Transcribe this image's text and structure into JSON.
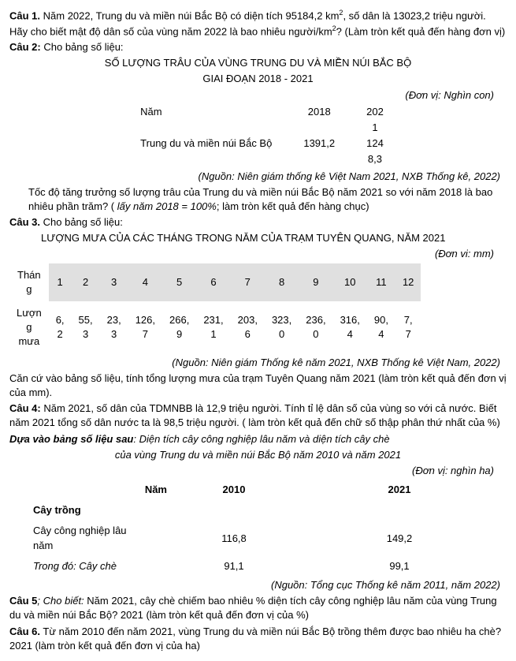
{
  "q1": {
    "label": "Câu 1.",
    "text_a": "Năm 2022, Trung du và miền núi Bắc Bộ có diện tích 95184,2 km",
    "sup": "2",
    "text_b": ", số dân là 13023,2 triệu người. Hãy cho biết mật độ dân số của vùng năm 2022 là bao nhiêu người/km",
    "sup2": "2",
    "text_c": "? (Làm tròn kết quả đến hàng đơn vị)"
  },
  "q2": {
    "label": "Câu 2:",
    "lead": "Cho bảng số liệu:",
    "title1": "SỐ LƯỢNG TRÂU CỦA VÙNG TRUNG DU VÀ MIỀN NÚI BẮC BỘ",
    "title2": "GIAI ĐOẠN 2018 - 2021",
    "unit": "(Đơn vị: Nghìn con)",
    "colYear": "Năm",
    "col2018": "2018",
    "col2021_a": "202",
    "col2021_b": "1",
    "rowLabel": "Trung du và miền núi Bắc Bộ",
    "v2018": "1391,2",
    "v2021_a": "124",
    "v2021_b": "8,3",
    "source": "(Nguồn: Niên giám thống kê Việt Nam 2021, NXB Thống kê, 2022)",
    "ask_a": "Tốc độ tăng trưởng số lượng trâu của Trung du và miền núi Bắc Bộ năm 2021 so với năm 2018 là bao nhiêu phần trăm? ( ",
    "ask_i": "lấy năm 2018 = 100%",
    "ask_b": "; làm tròn kết quả đến hàng chục)"
  },
  "q3": {
    "label": "Câu 3.",
    "lead": "Cho bảng số liệu:",
    "title": "LƯỢNG MƯA CỦA CÁC THÁNG TRONG NĂM CỦA TRẠM TUYÊN QUANG, NĂM 2021",
    "unit": "(Đơn vi: mm)",
    "headLabel": "Thán\ng",
    "rowLabel": "Lượn\ng\nmưa",
    "months": [
      "1",
      "2",
      "3",
      "4",
      "5",
      "6",
      "7",
      "8",
      "9",
      "10",
      "11",
      "12"
    ],
    "vals": [
      "6,\n2",
      "55,\n3",
      "23,\n3",
      "126,\n7",
      "266,\n9",
      "231,\n1",
      "203,\n6",
      "323,\n0",
      "236,\n0",
      "316,\n4",
      "90,\n4",
      "7,\n7"
    ],
    "source": "(Nguồn: Niên giám Thống kê năm 2021, NXB Thống kê Việt Nam, 2022)",
    "ask": "Căn cứ vào bảng số liệu, tính tổng lượng mưa của trạm Tuyên Quang năm 2021 (làm tròn kết quả đến đơn vị của mm)."
  },
  "q4": {
    "label": "Câu 4:",
    "text": "Năm 2021, số dân của TDMNBB là 12,9 triệu người. Tính tỉ lệ dân số của vùng so với cả nước. Biết năm 2021 tổng số dân nước ta là 98,5 triệu người. ( làm tròn kết quả đến chữ số thập phân thứ nhất của %)"
  },
  "intro": {
    "lead_b": "Dựa vào bảng số liệu sau",
    "lead": ": Diện tích cây công nghiệp lâu năm và diện tích cây chè",
    "lead2": "của vùng Trung du và miền núi Bắc Bộ năm 2010 và năm 2021",
    "unit": "(Đơn vị: nghìn ha)",
    "colYear": "Năm",
    "col2010": "2010",
    "col2021": "2021",
    "rowCrop": "Cây trồng",
    "row1": "Cây công nghiệp lâu năm",
    "row1_2010": "116,8",
    "row1_2021": "149,2",
    "row2_i": "Trong đó: Cây chè",
    "row2_2010": "91,1",
    "row2_2021": "99,1",
    "source": "(Nguồn: Tổng cục Thống kê năm 2011, năm 2022)"
  },
  "q5": {
    "label": "Câu 5",
    "lead_i": "; Cho biết:",
    "text": " Năm 2021, cây chè chiếm bao nhiêu % diện tích cây công nghiệp lâu năm của vùng Trung du và miền núi Bắc Bộ? 2021 (làm tròn kết quả đến đơn vị của %)"
  },
  "q6": {
    "label": "Câu 6.",
    "text": "Từ năm 2010 đến năm 2021, vùng Trung du và miền núi Bắc Bộ trồng thêm được bao nhiêu ha chè? 2021 (làm tròn kết quả đến đơn vị của ha)"
  }
}
